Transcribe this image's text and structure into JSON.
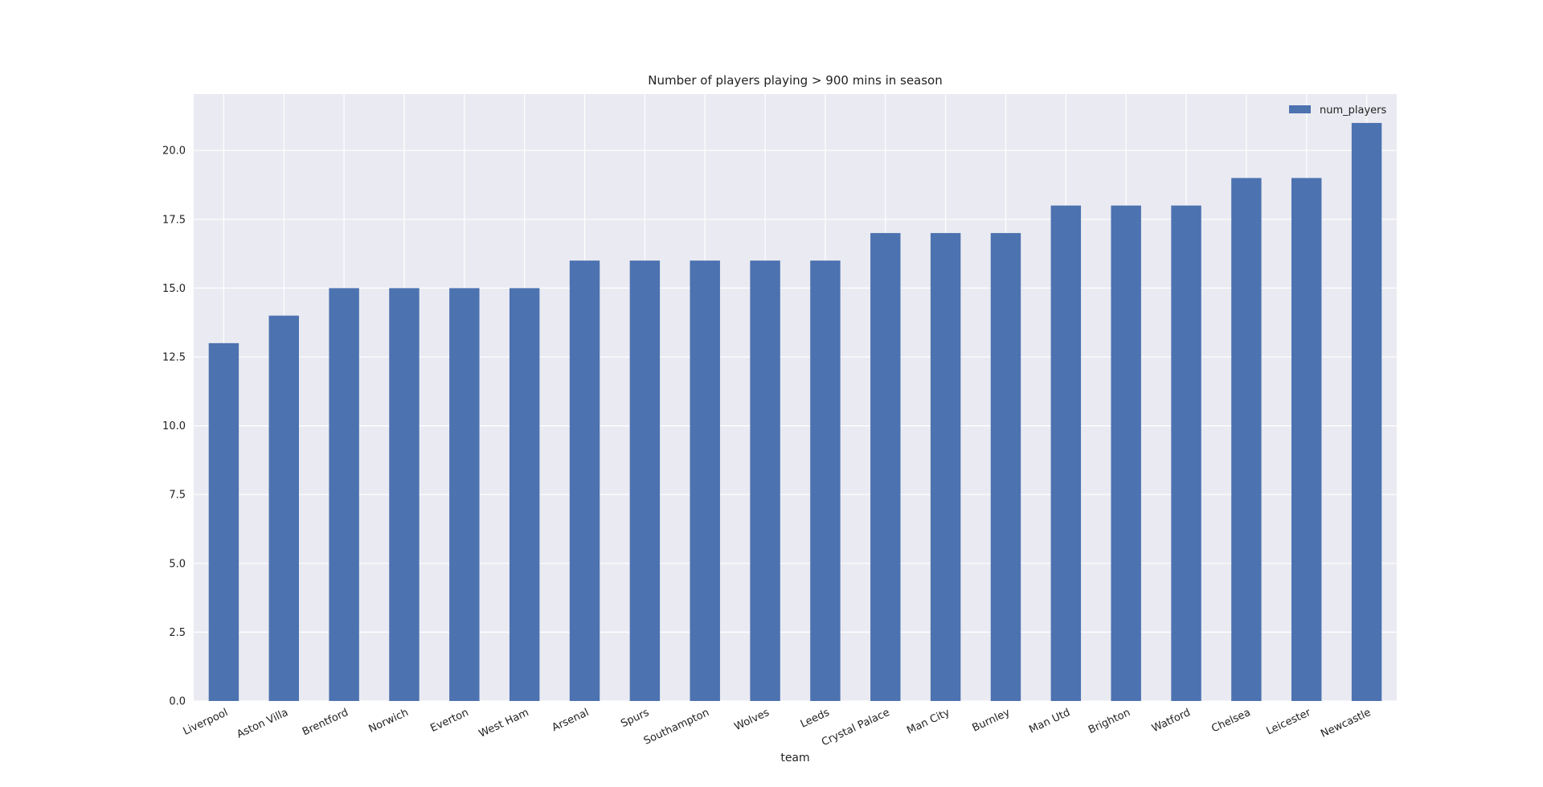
{
  "chart_data": {
    "type": "bar",
    "title": "Number of players playing > 900 mins in season",
    "xlabel": "team",
    "ylabel": "",
    "categories": [
      "Liverpool",
      "Aston Villa",
      "Brentford",
      "Norwich",
      "Everton",
      "West Ham",
      "Arsenal",
      "Spurs",
      "Southampton",
      "Wolves",
      "Leeds",
      "Crystal Palace",
      "Man City",
      "Burnley",
      "Man Utd",
      "Brighton",
      "Watford",
      "Chelsea",
      "Leicester",
      "Newcastle"
    ],
    "series": [
      {
        "name": "num_players",
        "color": "#4c72b0",
        "values": [
          13,
          14,
          15,
          15,
          15,
          15,
          16,
          16,
          16,
          16,
          16,
          17,
          17,
          17,
          18,
          18,
          18,
          19,
          19,
          21
        ]
      }
    ],
    "ylim": [
      0,
      22.05
    ],
    "yticks": [
      0.0,
      2.5,
      5.0,
      7.5,
      10.0,
      12.5,
      15.0,
      17.5,
      20.0
    ],
    "ytick_labels": [
      "0.0",
      "2.5",
      "5.0",
      "7.5",
      "10.0",
      "12.5",
      "15.0",
      "17.5",
      "20.0"
    ],
    "grid": true,
    "legend_position": "top-right",
    "background_color": "#eaeaf2",
    "grid_color": "#ffffff"
  }
}
